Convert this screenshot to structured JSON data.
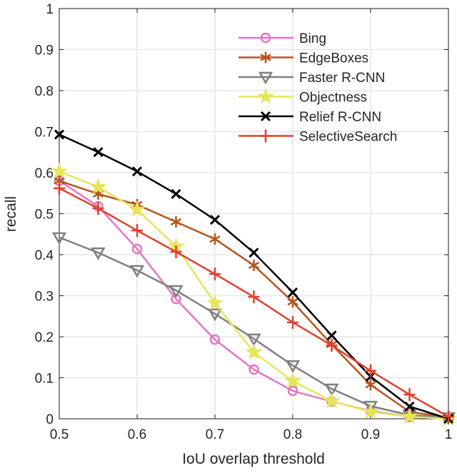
{
  "chart_data": {
    "type": "line",
    "title": "",
    "xlabel": "IoU overlap threshold",
    "ylabel": "recall",
    "xlim": [
      0.5,
      1
    ],
    "ylim": [
      0,
      1
    ],
    "grid": true,
    "legend_placement": "top-right",
    "x": [
      0.5,
      0.55,
      0.6,
      0.65,
      0.7,
      0.75,
      0.8,
      0.85,
      0.9,
      0.95,
      1.0
    ],
    "xticks": [
      "0.5",
      "0.6",
      "0.7",
      "0.8",
      "0.9",
      "1"
    ],
    "xtick_values": [
      0.5,
      0.6,
      0.7,
      0.8,
      0.9,
      1
    ],
    "yticks": [
      "0",
      "0.1",
      "0.2",
      "0.3",
      "0.4",
      "0.5",
      "0.6",
      "0.7",
      "0.8",
      "0.9",
      "1"
    ],
    "ytick_values": [
      0,
      0.1,
      0.2,
      0.3,
      0.4,
      0.5,
      0.6,
      0.7,
      0.8,
      0.9,
      1
    ],
    "series": [
      {
        "name": "Bing",
        "color": "#e377c2",
        "marker": "circle",
        "values": [
          0.58,
          0.518,
          0.414,
          0.292,
          0.193,
          0.12,
          0.068,
          0.042,
          0.019,
          0.005,
          0.0
        ]
      },
      {
        "name": "EdgeBoxes",
        "color": "#b5541f",
        "marker": "asterisk",
        "values": [
          0.58,
          0.548,
          0.522,
          0.48,
          0.438,
          0.374,
          0.285,
          0.181,
          0.083,
          0.017,
          0.003
        ]
      },
      {
        "name": "Faster R-CNN",
        "color": "#7f7f7f",
        "marker": "triangle-down",
        "values": [
          0.442,
          0.405,
          0.362,
          0.313,
          0.256,
          0.195,
          0.13,
          0.073,
          0.031,
          0.009,
          0.003
        ]
      },
      {
        "name": "Objectness",
        "color": "#e6e65a",
        "marker": "star",
        "values": [
          0.603,
          0.565,
          0.51,
          0.42,
          0.282,
          0.162,
          0.092,
          0.043,
          0.017,
          0.005,
          0.0
        ]
      },
      {
        "name": "Relief R-CNN",
        "color": "#000000",
        "marker": "x",
        "values": [
          0.693,
          0.65,
          0.603,
          0.548,
          0.485,
          0.405,
          0.308,
          0.203,
          0.103,
          0.03,
          0.0
        ]
      },
      {
        "name": "SelectiveSearch",
        "color": "#e0402f",
        "marker": "plus",
        "values": [
          0.562,
          0.513,
          0.459,
          0.407,
          0.353,
          0.297,
          0.235,
          0.179,
          0.117,
          0.059,
          0.005
        ]
      }
    ]
  }
}
